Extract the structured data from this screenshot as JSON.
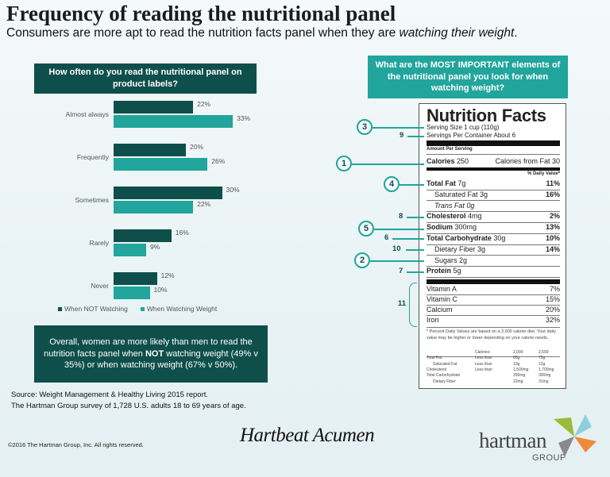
{
  "header": {
    "title": "Frequency of reading the nutritional panel",
    "subtitle_pre": "Consumers are more apt to read the nutrition facts panel when they are ",
    "subtitle_em": "watching their weight",
    "subtitle_post": "."
  },
  "chart_data": {
    "type": "bar",
    "orientation": "horizontal",
    "title": "How often do you read the nutritional panel on product labels?",
    "categories": [
      "Almost always",
      "Frequently",
      "Sometimes",
      "Rarely",
      "Never"
    ],
    "series": [
      {
        "name": "When NOT Watching",
        "color": "#0f4f4b",
        "values": [
          22,
          20,
          30,
          16,
          12
        ]
      },
      {
        "name": "When Watching Weight",
        "color": "#21a59c",
        "values": [
          33,
          26,
          22,
          9,
          10
        ]
      }
    ],
    "value_format": "percent",
    "legend": "bottom",
    "grid": false
  },
  "note": {
    "pre": "Overall, women are more likely than men to read the nutrition facts panel when ",
    "bold": "NOT",
    "post": " watching weight (49% v 35%) or when watching weight (67% v 50%)."
  },
  "source": {
    "line1": "Source: Weight Management & Healthy Living 2015 report.",
    "line2": "The Hartman Group survey of 1,728 U.S. adults 18 to 69 years of age."
  },
  "copyright": "©2016 The Hartman Group, Inc. All rights reserved.",
  "signature": "Hartbeat Acumen",
  "logo": {
    "name": "hartman",
    "sub": "GROUP"
  },
  "right": {
    "question": "What are the MOST IMPORTANT elements of the nutritional panel you look for when watching weight?"
  },
  "label": {
    "title": "Nutrition Facts",
    "serving_size": "Serving Size 1 cup (110g)",
    "servings": "Servings Per Container About 6",
    "amount": "Amount Per Serving",
    "calories_b": "Calories",
    "calories_v": "250",
    "calories_fat": "Calories from Fat 30",
    "dv_head": "% Daily Value*",
    "rows": [
      {
        "b": "Total Fat",
        "v": "7g",
        "p": "11%"
      },
      {
        "b": "",
        "v": "Saturated Fat 3g",
        "p": "16%"
      },
      {
        "b": "",
        "v": "Trans Fat 0g",
        "p": ""
      },
      {
        "b": "Cholesterol",
        "v": "4mg",
        "p": "2%"
      },
      {
        "b": "Sodium",
        "v": "300mg",
        "p": "13%"
      },
      {
        "b": "Total Carbohydrate",
        "v": "30g",
        "p": "10%"
      },
      {
        "b": "",
        "v": "Dietary Fiber 3g",
        "p": "14%"
      },
      {
        "b": "",
        "v": "Sugars 2g",
        "p": ""
      },
      {
        "b": "Protein",
        "v": "5g",
        "p": ""
      }
    ],
    "vitamins": [
      {
        "n": "Vitamin A",
        "p": "7%"
      },
      {
        "n": "Vitamin C",
        "p": "15%"
      },
      {
        "n": "Calcium",
        "p": "20%"
      },
      {
        "n": "Iron",
        "p": "32%"
      }
    ],
    "footnote": "* Percent Daily Values are based on a 2,000 calorie diet. Your daily value may be higher or lower depending on your calorie needs.",
    "table_head": [
      "",
      "Calories:",
      "2,000",
      "2,500"
    ],
    "table": [
      [
        "Total Fat",
        "Less than",
        "65g",
        "75g"
      ],
      [
        "Saturated Fat",
        "Less than",
        "10g",
        "12g"
      ],
      [
        "Cholesterol",
        "Less than",
        "1,500mg",
        "1,700mg"
      ],
      [
        "Total Carbohydrate",
        "",
        "250mg",
        "300mg"
      ],
      [
        "Dietary Fiber",
        "",
        "22mg",
        "31mg"
      ]
    ]
  },
  "callouts": {
    "serving": "3",
    "servings": "9",
    "calories": "1",
    "fat": "4",
    "cholesterol": "8",
    "sodium": "5",
    "carb": "6",
    "fiber": "10",
    "sugars": "2",
    "protein": "7",
    "vitamins": "11"
  }
}
